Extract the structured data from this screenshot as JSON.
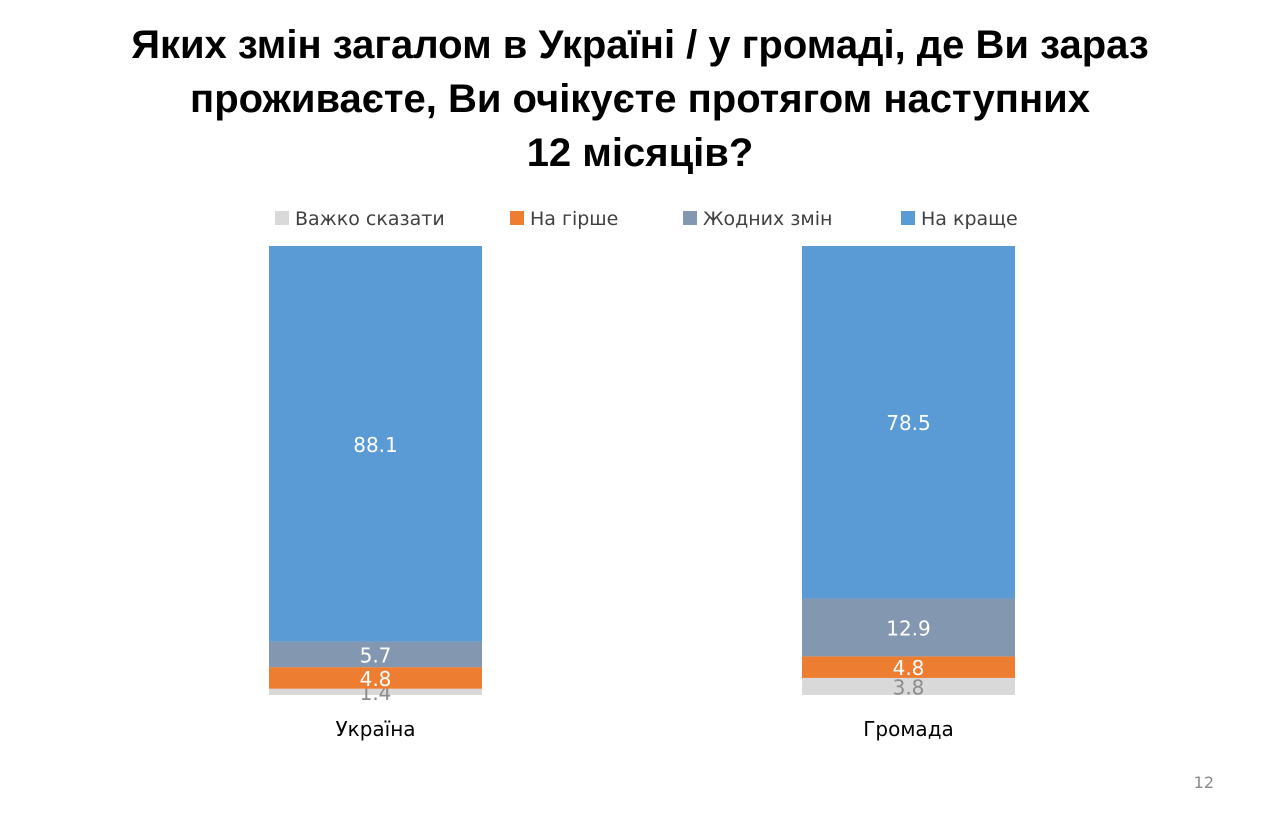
{
  "title": {
    "line1": "Яких змін загалом в Україні / у громаді, де Ви зараз",
    "line2": "проживаєте, Ви очікуєте протягом наступних",
    "line3": "12 місяців?"
  },
  "page_number": "12",
  "chart_data": {
    "type": "bar",
    "stacked": true,
    "categories": [
      "Україна",
      "Громада"
    ],
    "series": [
      {
        "name": "Важко сказати",
        "values": [
          1.4,
          3.8
        ],
        "color": "#d9d9d9",
        "label_color": "#8c8c8c"
      },
      {
        "name": "На гірше",
        "values": [
          4.8,
          4.8
        ],
        "color": "#ed7d31",
        "label_color": "#ffffff"
      },
      {
        "name": "Жодних змін",
        "values": [
          5.7,
          12.9
        ],
        "color": "#8497b0",
        "label_color": "#ffffff"
      },
      {
        "name": "На краще",
        "values": [
          88.1,
          78.5
        ],
        "color": "#5b9bd5",
        "label_color": "#ffffff"
      }
    ],
    "ylim": [
      0,
      100
    ],
    "legend": "top",
    "grid": false
  }
}
